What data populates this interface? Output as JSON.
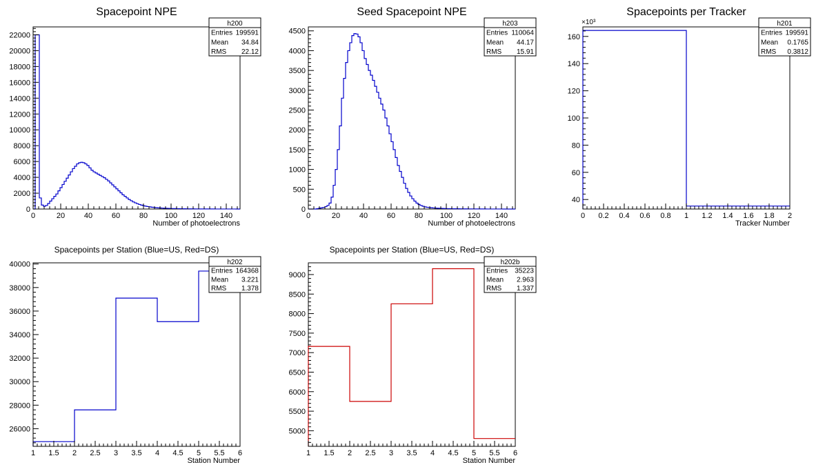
{
  "chart_data": [
    {
      "id": "h200",
      "type": "histogram",
      "title": "Spacepoint NPE",
      "xlabel": "Number of photoelectrons",
      "xlim": [
        0,
        150
      ],
      "ylim": [
        0,
        23000
      ],
      "xticks": [
        0,
        20,
        40,
        60,
        80,
        100,
        120,
        140
      ],
      "yticks": [
        0,
        2000,
        4000,
        6000,
        8000,
        10000,
        12000,
        14000,
        16000,
        18000,
        20000,
        22000
      ],
      "color": "#0000cc",
      "stats": {
        "name": "h200",
        "rows": [
          {
            "label": "Entries",
            "value": "199591"
          },
          {
            "label": "Mean",
            "value": "34.84"
          },
          {
            "label": "RMS",
            "value": "22.12"
          }
        ]
      },
      "bin_width": 1.5,
      "x_start": 0,
      "values": [
        0,
        22000,
        22000,
        1400,
        500,
        350,
        450,
        700,
        1000,
        1300,
        1600,
        1900,
        2300,
        2700,
        3100,
        3500,
        3900,
        4300,
        4700,
        5100,
        5400,
        5700,
        5850,
        5900,
        5850,
        5700,
        5500,
        5200,
        4900,
        4700,
        4550,
        4400,
        4250,
        4100,
        3950,
        3750,
        3550,
        3300,
        3050,
        2800,
        2550,
        2300,
        2050,
        1800,
        1600,
        1400,
        1200,
        1050,
        900,
        780,
        670,
        570,
        490,
        420,
        360,
        310,
        270,
        230,
        200,
        175,
        150,
        130,
        115,
        100,
        90,
        80,
        70,
        60,
        55,
        50,
        45,
        40,
        35,
        32,
        28,
        25,
        22,
        20,
        18,
        16,
        14,
        13,
        12,
        11,
        10,
        9,
        8,
        8,
        7,
        7,
        6,
        6,
        5,
        5,
        5,
        4,
        4,
        4,
        3,
        3
      ]
    },
    {
      "id": "h203",
      "type": "histogram",
      "title": "Seed Spacepoint NPE",
      "xlabel": "Number of photoelectrons",
      "xlim": [
        0,
        150
      ],
      "ylim": [
        0,
        4600
      ],
      "xticks": [
        0,
        20,
        40,
        60,
        80,
        100,
        120,
        140
      ],
      "yticks": [
        0,
        500,
        1000,
        1500,
        2000,
        2500,
        3000,
        3500,
        4000,
        4500
      ],
      "color": "#0000cc",
      "stats": {
        "name": "h203",
        "rows": [
          {
            "label": "Entries",
            "value": "110064"
          },
          {
            "label": "Mean",
            "value": "44.17"
          },
          {
            "label": "RMS",
            "value": "15.91"
          }
        ]
      },
      "bin_width": 1.5,
      "x_start": 0,
      "values": [
        0,
        0,
        0,
        0,
        10,
        20,
        30,
        40,
        60,
        90,
        150,
        300,
        600,
        1000,
        1500,
        2100,
        2800,
        3300,
        3700,
        4000,
        4200,
        4380,
        4430,
        4420,
        4350,
        4200,
        4000,
        3800,
        3650,
        3500,
        3380,
        3250,
        3100,
        2950,
        2800,
        2650,
        2500,
        2300,
        2100,
        1900,
        1700,
        1500,
        1300,
        1100,
        950,
        800,
        650,
        520,
        420,
        330,
        260,
        200,
        150,
        115,
        90,
        70,
        55,
        45,
        38,
        32,
        27,
        23,
        20,
        17,
        15,
        13,
        11,
        10,
        9,
        8,
        7,
        6,
        6,
        5,
        5,
        4,
        4,
        3,
        3,
        3,
        3,
        2,
        2,
        2,
        2,
        2,
        1,
        1,
        1,
        1,
        1,
        1,
        1,
        1,
        0,
        0,
        0,
        0,
        0,
        0
      ]
    },
    {
      "id": "h201",
      "type": "histogram",
      "title": "Spacepoints per Tracker",
      "xlabel": "Tracker Number",
      "xlim": [
        0,
        2
      ],
      "ylim": [
        33,
        167
      ],
      "xticks": [
        0,
        0.2,
        0.4,
        0.6,
        0.8,
        1,
        1.2,
        1.4,
        1.6,
        1.8,
        2
      ],
      "yticks": [
        40,
        60,
        80,
        100,
        120,
        140,
        160
      ],
      "y_exponent_label": "×10³",
      "color": "#0000cc",
      "stats": {
        "name": "h201",
        "rows": [
          {
            "label": "Entries",
            "value": "199591"
          },
          {
            "label": "Mean",
            "value": "0.1765"
          },
          {
            "label": "RMS",
            "value": "0.3812"
          }
        ]
      },
      "bin_edges": [
        0,
        1,
        2
      ],
      "values": [
        164.4,
        35.2
      ]
    },
    {
      "id": "h202",
      "type": "histogram",
      "title": "Spacepoints per Station (Blue=US, Red=DS)",
      "xlabel": "Station Number",
      "xlim": [
        1,
        6
      ],
      "ylim": [
        24500,
        40100
      ],
      "xticks": [
        1,
        1.5,
        2,
        2.5,
        3,
        3.5,
        4,
        4.5,
        5,
        5.5,
        6
      ],
      "yticks": [
        26000,
        28000,
        30000,
        32000,
        34000,
        36000,
        38000,
        40000
      ],
      "color": "#0000cc",
      "stats": {
        "name": "h202",
        "rows": [
          {
            "label": "Entries",
            "value": "164368"
          },
          {
            "label": "Mean",
            "value": "3.221"
          },
          {
            "label": "RMS",
            "value": "1.378"
          }
        ]
      },
      "bin_edges": [
        1,
        2,
        3,
        4,
        5,
        6
      ],
      "values": [
        24900,
        27600,
        37100,
        35100,
        39400
      ]
    },
    {
      "id": "h202b",
      "type": "histogram",
      "title": "Spacepoints per Station (Blue=US, Red=DS)",
      "xlabel": "Station Number",
      "xlim": [
        1,
        6
      ],
      "ylim": [
        4600,
        9300
      ],
      "xticks": [
        1,
        1.5,
        2,
        2.5,
        3,
        3.5,
        4,
        4.5,
        5,
        5.5,
        6
      ],
      "yticks": [
        5000,
        5500,
        6000,
        6500,
        7000,
        7500,
        8000,
        8500,
        9000
      ],
      "color": "#cc0000",
      "stats": {
        "name": "h202b",
        "rows": [
          {
            "label": "Entries",
            "value": "35223"
          },
          {
            "label": "Mean",
            "value": "2.963"
          },
          {
            "label": "RMS",
            "value": "1.337"
          }
        ]
      },
      "bin_edges": [
        1,
        2,
        3,
        4,
        5,
        6
      ],
      "values": [
        7160,
        5750,
        8250,
        9150,
        4800
      ]
    }
  ]
}
